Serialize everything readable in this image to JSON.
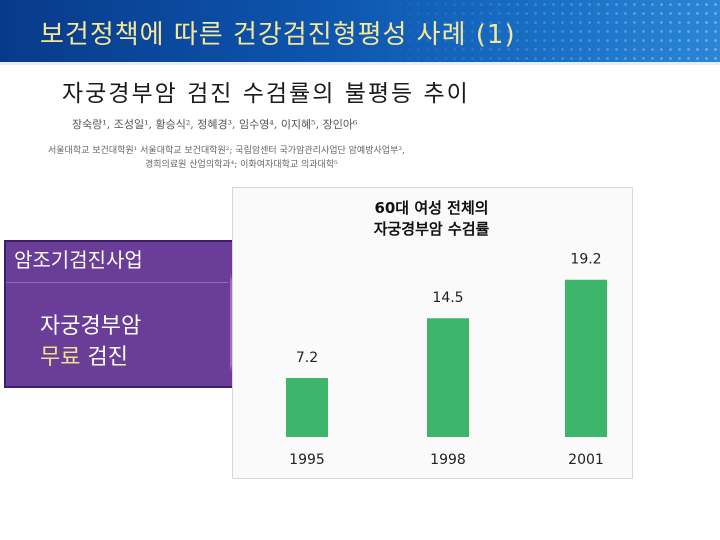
{
  "slide": {
    "title": "보건정책에 따른 건강검진형평성 사례 (1)"
  },
  "paper": {
    "title": "자궁경부암 검진 수검률의 불평등 추이",
    "authors": "장숙랑¹, 조성일¹, 황승식², 정혜경³, 임수영⁴, 이지혜⁵, 장인아⁶",
    "affiliation_line1": "서울대학교 보건대학원¹ 서울대학교 보건대학원²; 국립암센터 국가암관리사업단 암예방사업부³,",
    "affiliation_line2": "경희의료원 산업의학과⁴; 이화여자대학교 의과대학⁵"
  },
  "side_panel": {
    "program": "암조기검진사업",
    "line1": "자궁경부암",
    "line2_highlight": "무료",
    "line2_rest": " 검진",
    "colors": {
      "box": "#6a3d98",
      "highlight": "#f3e08a",
      "arrow": "#7a4ea6"
    }
  },
  "chart_data": {
    "type": "bar",
    "title_line1": "60대 여성 전체의",
    "title_line2": "자궁경부암 수검률",
    "categories": [
      "1995",
      "1998",
      "2001"
    ],
    "values": [
      7.2,
      14.5,
      19.2
    ],
    "value_labels": [
      "7.2",
      "14.5",
      "19.2"
    ],
    "ylim": [
      0,
      21
    ],
    "grid": false,
    "legend": "none",
    "bar_color": "#3db56a"
  }
}
